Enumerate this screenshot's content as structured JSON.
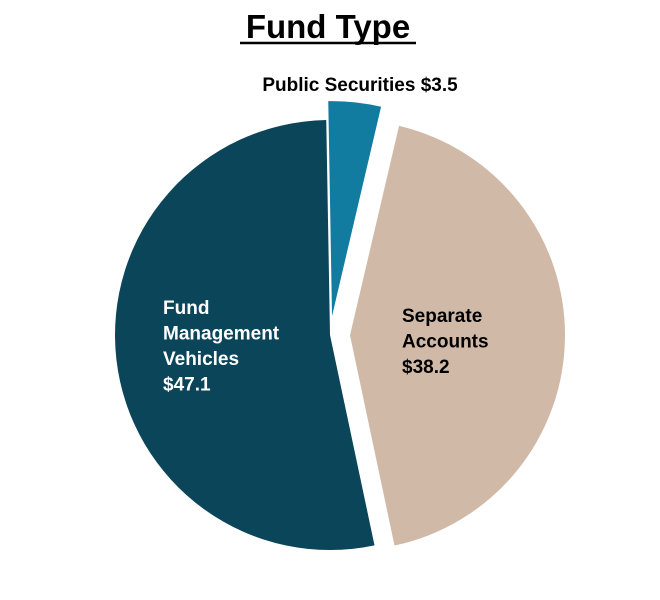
{
  "chart_data": {
    "type": "pie",
    "title": "Fund Type",
    "slices": [
      {
        "name": "Public Securities",
        "value": 3.5,
        "color": "#127ba0",
        "label_lines": [
          "Public Securities $3.5"
        ],
        "label_color": "#000000"
      },
      {
        "name": "Separate Accounts",
        "value": 38.2,
        "color": "#d1b9a8",
        "label_lines": [
          "Separate",
          "Accounts",
          "$38.2"
        ],
        "label_color": "#000000"
      },
      {
        "name": "Fund Management Vehicles",
        "value": 47.1,
        "color": "#0b4559",
        "label_lines": [
          "Fund",
          "Management",
          "Vehicles",
          "$47.1"
        ],
        "label_color": "#ffffff"
      }
    ]
  }
}
